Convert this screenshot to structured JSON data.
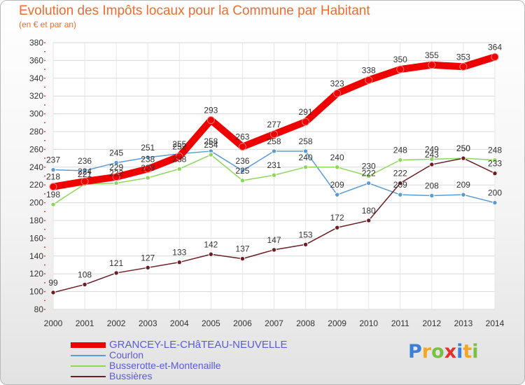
{
  "header": {
    "title": "Evolution des Impôts locaux pour la Commune par Habitant",
    "subtitle": "(en € et par an)"
  },
  "brand": {
    "logo_text": "Proxiti"
  },
  "chart_data": {
    "type": "line",
    "title": "Evolution des Impôts locaux pour la Commune par Habitant",
    "subtitle": "(en € et par an)",
    "x": [
      "2000",
      "2001",
      "2002",
      "2003",
      "2004",
      "2005",
      "2006",
      "2007",
      "2008",
      "2009",
      "2010",
      "2011",
      "2012",
      "2013",
      "2014"
    ],
    "ylim": [
      80,
      380
    ],
    "yticks": [
      80,
      100,
      120,
      140,
      160,
      180,
      200,
      220,
      240,
      260,
      280,
      300,
      320,
      340,
      360,
      380
    ],
    "grid": true,
    "legend_position": "bottom-left",
    "series": [
      {
        "name": "GRANCEY-LE-CHâTEAU-NEUVELLE",
        "color": "#ee0000",
        "values": [
          218,
          224,
          229,
          238,
          252,
          293,
          263,
          277,
          291,
          323,
          338,
          350,
          355,
          353,
          364
        ]
      },
      {
        "name": "Courlon",
        "color": "#5b9bd5",
        "values": [
          237,
          236,
          245,
          251,
          255,
          258,
          236,
          258,
          258,
          209,
          222,
          209,
          208,
          209,
          200
        ]
      },
      {
        "name": "Busserotte-et-Montenaille",
        "color": "#8ed65a",
        "values": [
          198,
          221,
          222,
          228,
          238,
          254,
          225,
          231,
          240,
          240,
          230,
          248,
          249,
          250,
          248
        ]
      },
      {
        "name": "Bussières",
        "color": "#6b1e24",
        "values": [
          99,
          108,
          121,
          127,
          133,
          142,
          137,
          147,
          153,
          172,
          180,
          222,
          243,
          250,
          233
        ]
      }
    ]
  }
}
